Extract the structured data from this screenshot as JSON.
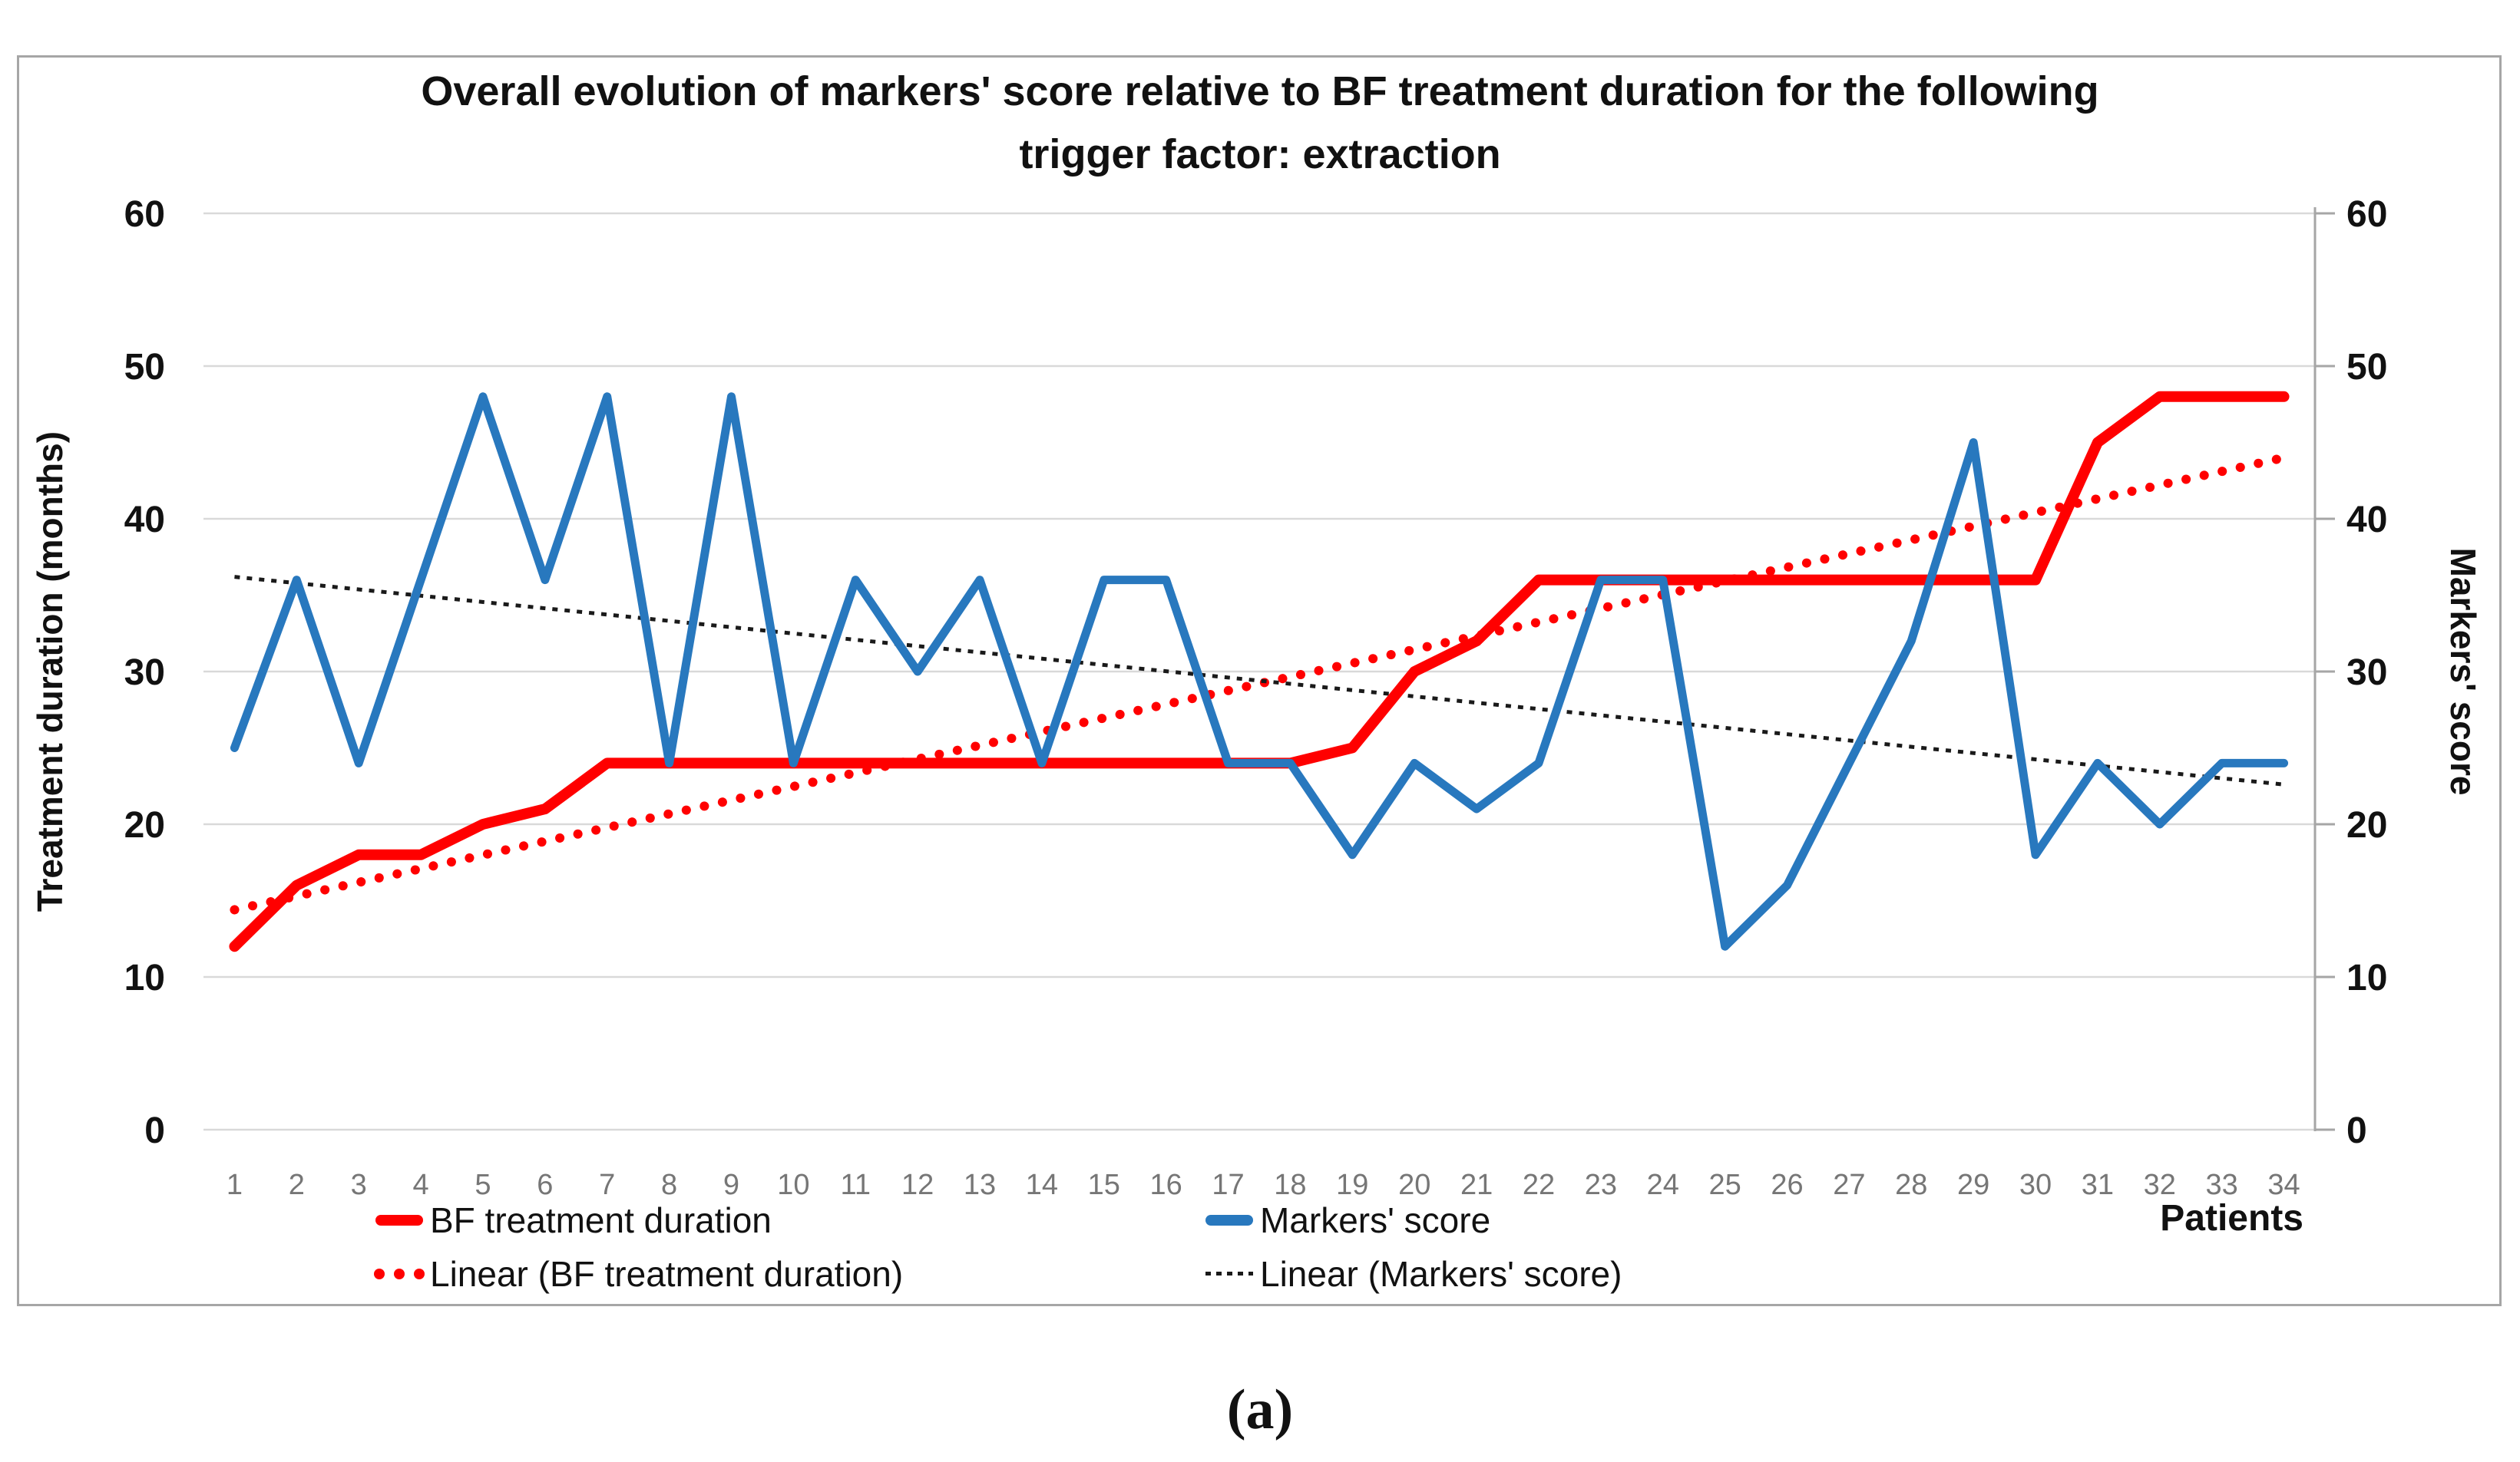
{
  "title": {
    "line1": "Overall evolution of markers' score relative to BF treatment duration for the following",
    "line2": "trigger factor: extraction"
  },
  "caption": "(a)",
  "axes": {
    "left_title": "Treatment duration (months)",
    "right_title": "Markers' score",
    "x_title": "Patients",
    "y_ticks": [
      0,
      10,
      20,
      30,
      40,
      50,
      60
    ],
    "x_ticks": [
      1,
      2,
      3,
      4,
      5,
      6,
      7,
      8,
      9,
      10,
      11,
      12,
      13,
      14,
      15,
      16,
      17,
      18,
      19,
      20,
      21,
      22,
      23,
      24,
      25,
      26,
      27,
      28,
      29,
      30,
      31,
      32,
      33,
      34
    ]
  },
  "legend": {
    "bf_label": "BF treatment duration",
    "markers_label": "Markers' score",
    "linear_bf_label": "Linear (BF treatment duration)",
    "linear_markers_label": "Linear (Markers' score)",
    "patients_label": "Patients"
  },
  "colors": {
    "red_series": "#FF0000",
    "blue_series": "#2878BE",
    "black_trend": "#1a1a1a",
    "gridline": "#D9D9D9",
    "axis_line": "#A6A6A6",
    "x_tick_label": "#767676",
    "frame_border": "#A6A6A6"
  },
  "chart_data": {
    "type": "line",
    "title": "Overall evolution of markers' score relative to BF treatment duration for the following trigger factor: extraction",
    "xlabel": "Patients",
    "ylabel_left": "Treatment duration (months)",
    "ylabel_right": "Markers' score",
    "ylim": [
      0,
      60
    ],
    "ytick_step": 10,
    "grid": true,
    "legend_position": "bottom",
    "x": [
      1,
      2,
      3,
      4,
      5,
      6,
      7,
      8,
      9,
      10,
      11,
      12,
      13,
      14,
      15,
      16,
      17,
      18,
      19,
      20,
      21,
      22,
      23,
      24,
      25,
      26,
      27,
      28,
      29,
      30,
      31,
      32,
      33,
      34
    ],
    "series": [
      {
        "name": "BF treatment duration",
        "color": "#FF0000",
        "style": "solid",
        "values": [
          12,
          16,
          18,
          18,
          20,
          21,
          24,
          24,
          24,
          24,
          24,
          24,
          24,
          24,
          24,
          24,
          24,
          24,
          25,
          30,
          32,
          36,
          36,
          36,
          36,
          36,
          36,
          36,
          36,
          36,
          45,
          48,
          48,
          48
        ]
      },
      {
        "name": "Markers' score",
        "color": "#2878BE",
        "style": "solid",
        "values": [
          25,
          36,
          24,
          36,
          48,
          36,
          48,
          24,
          48,
          24,
          36,
          30,
          36,
          24,
          36,
          36,
          24,
          24,
          18,
          24,
          21,
          24,
          36,
          36,
          12,
          16,
          24,
          32,
          45,
          18,
          24,
          20,
          24,
          24
        ]
      },
      {
        "name": "Linear (BF treatment duration)",
        "color": "#FF0000",
        "style": "round-dotted",
        "trend": {
          "start": 14.4,
          "end": 44.0
        }
      },
      {
        "name": "Linear (Markers' score)",
        "color": "#1a1a1a",
        "style": "fine-dotted",
        "trend": {
          "start": 36.2,
          "end": 22.6
        }
      }
    ]
  }
}
